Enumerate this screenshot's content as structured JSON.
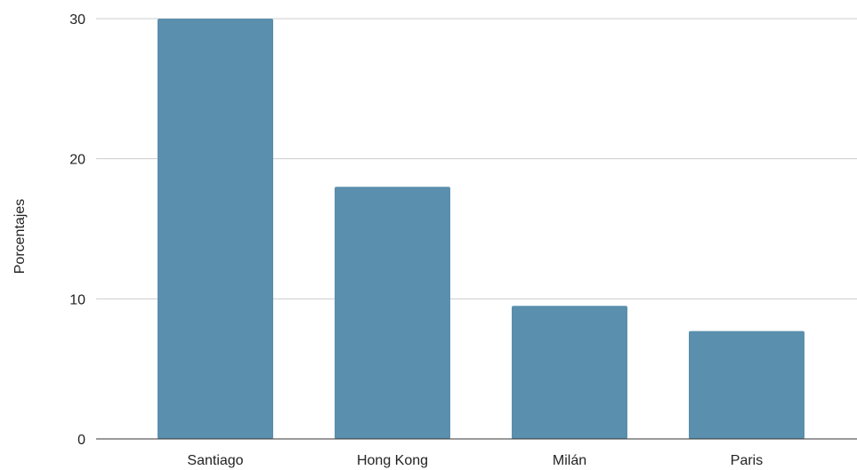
{
  "chart_data": {
    "type": "bar",
    "title": "",
    "xlabel": "",
    "ylabel": "Porcentajes",
    "categories": [
      "Santiago",
      "Hong Kong",
      "Milán",
      "Paris"
    ],
    "series": [
      {
        "values": [
          30,
          18,
          9.5,
          7.7
        ]
      }
    ],
    "ylim": [
      0,
      30
    ],
    "yticks": [
      0,
      10,
      20,
      30
    ],
    "grid": true,
    "legend": "none",
    "colors": {
      "bar": "#5a8fae",
      "gridline": "#cccccc",
      "baseline": "#333333"
    }
  }
}
